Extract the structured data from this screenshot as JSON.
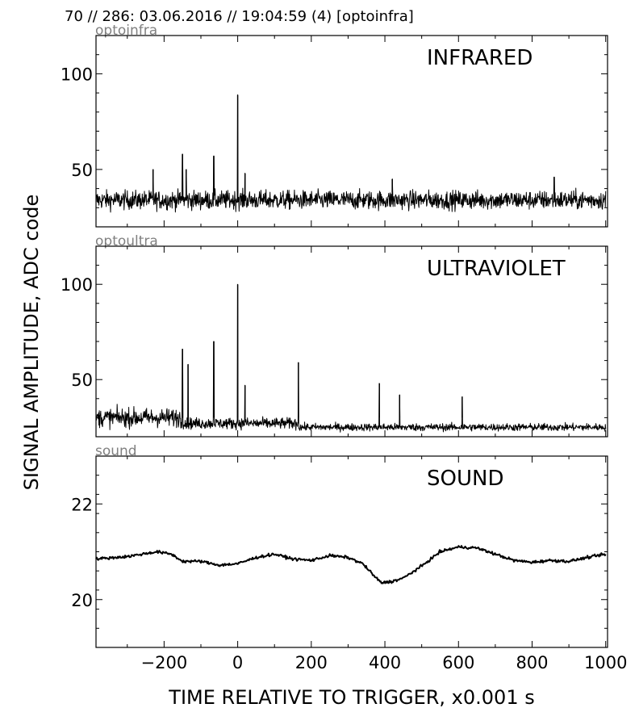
{
  "header": "70 // 286:   03.06.2016 // 19:04:59 (4)  [optoinfra]",
  "ylabel": "SIGNAL AMPLITUDE,  ADC code",
  "xlabel": "TIME RELATIVE TO TRIGGER,   x0.001 s",
  "x_tick_labels": [
    "−200",
    "0",
    "200",
    "400",
    "600",
    "800",
    "1000"
  ],
  "panels": [
    {
      "corner_label": "optoinfra",
      "title": "INFRARED",
      "y_tick_labels": [
        "100",
        "50"
      ]
    },
    {
      "corner_label": "optoultra",
      "title": "ULTRAVIOLET",
      "y_tick_labels": [
        "100",
        "50"
      ]
    },
    {
      "corner_label": "sound",
      "title": "SOUND",
      "y_tick_labels": [
        "22",
        "20"
      ]
    }
  ],
  "colors": {
    "trace": "#000000",
    "corner_label": "#808080"
  },
  "chart_data": [
    {
      "type": "line",
      "title": "INFRARED",
      "xlim": [
        -385,
        1005
      ],
      "ylim": [
        20,
        120
      ],
      "y_ticks": [
        50,
        100
      ],
      "x_ticks": [
        -200,
        0,
        200,
        400,
        600,
        800,
        1000
      ],
      "baseline": 34,
      "noise_amplitude": 5,
      "spikes": [
        {
          "x": -230,
          "y": 50
        },
        {
          "x": -150,
          "y": 58
        },
        {
          "x": -140,
          "y": 50
        },
        {
          "x": -65,
          "y": 57
        },
        {
          "x": 0,
          "y": 89
        },
        {
          "x": 20,
          "y": 48
        },
        {
          "x": 420,
          "y": 45
        },
        {
          "x": 860,
          "y": 46
        }
      ],
      "series": [
        {
          "x_range": [
            -385,
            1000
          ]
        }
      ]
    },
    {
      "type": "line",
      "title": "ULTRAVIOLET",
      "xlim": [
        -385,
        1005
      ],
      "ylim": [
        20,
        120
      ],
      "y_ticks": [
        50,
        100
      ],
      "x_ticks": [
        -200,
        0,
        200,
        400,
        600,
        800,
        1000
      ],
      "baseline_segments": [
        {
          "x": [
            -385,
            -155
          ],
          "level": 30,
          "noise": 5
        },
        {
          "x": [
            -155,
            165
          ],
          "level": 27,
          "noise": 3
        },
        {
          "x": [
            165,
            1000
          ],
          "level": 25,
          "noise": 2
        }
      ],
      "spikes": [
        {
          "x": -150,
          "y": 66
        },
        {
          "x": -135,
          "y": 58
        },
        {
          "x": -65,
          "y": 70
        },
        {
          "x": 0,
          "y": 100
        },
        {
          "x": 20,
          "y": 47
        },
        {
          "x": 165,
          "y": 59
        },
        {
          "x": 385,
          "y": 48
        },
        {
          "x": 440,
          "y": 42
        },
        {
          "x": 610,
          "y": 41
        }
      ],
      "series": [
        {
          "x_range": [
            -385,
            1000
          ]
        }
      ]
    },
    {
      "type": "line",
      "title": "SOUND",
      "xlim": [
        -385,
        1005
      ],
      "ylim": [
        19,
        23
      ],
      "y_ticks": [
        20,
        22
      ],
      "x_ticks": [
        -200,
        0,
        200,
        400,
        600,
        800,
        1000
      ],
      "series": [
        {
          "x": [
            -385,
            -300,
            -220,
            -180,
            -150,
            -100,
            -50,
            0,
            50,
            100,
            150,
            200,
            250,
            300,
            340,
            370,
            390,
            420,
            450,
            500,
            550,
            600,
            650,
            700,
            750,
            800,
            850,
            900,
            950,
            1000
          ],
          "y": [
            20.85,
            20.9,
            21.0,
            20.95,
            20.8,
            20.8,
            20.72,
            20.75,
            20.88,
            20.95,
            20.85,
            20.82,
            20.92,
            20.88,
            20.75,
            20.5,
            20.35,
            20.38,
            20.45,
            20.7,
            21.0,
            21.1,
            21.08,
            20.95,
            20.82,
            20.78,
            20.82,
            20.8,
            20.88,
            20.95
          ]
        }
      ]
    }
  ]
}
